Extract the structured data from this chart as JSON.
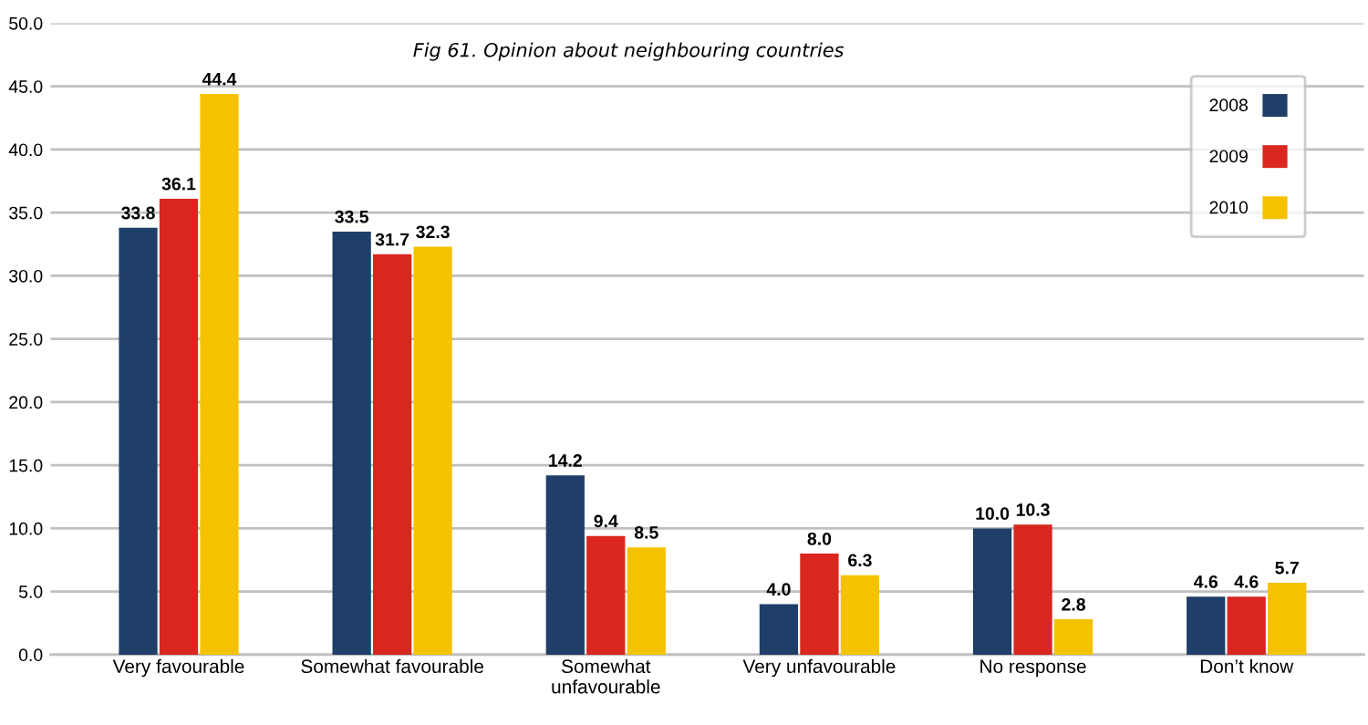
{
  "chart_data": {
    "type": "bar",
    "title": "Fig 61. Opinion about neighbouring countries",
    "categories": [
      "Very favourable",
      "Somewhat favourable",
      "Somewhat\nunfavourable",
      "Very unfavourable",
      "No response",
      "Don’t know"
    ],
    "series": [
      {
        "name": "2008",
        "color": "#1f3f68",
        "values": [
          33.8,
          33.5,
          14.2,
          4.0,
          10.0,
          4.6
        ],
        "value_labels": [
          "33.8",
          "33.5",
          "14.2",
          "4.0",
          "10.0",
          "4.6"
        ]
      },
      {
        "name": "2009",
        "color": "#d9261f",
        "values": [
          36.1,
          31.7,
          9.4,
          8.0,
          10.3,
          4.6
        ],
        "value_labels": [
          "36.1",
          "31.7",
          "9.4",
          "8.0",
          "10.3",
          "4.6"
        ]
      },
      {
        "name": "2010",
        "color": "#f5c200",
        "values": [
          44.4,
          32.3,
          8.5,
          6.3,
          2.8,
          5.7
        ],
        "value_labels": [
          "44.4",
          "32.3",
          "8.5",
          "6.3",
          "2.8",
          "5.7"
        ]
      }
    ],
    "ylim": [
      0,
      50
    ],
    "yticks": [
      {
        "value": 0,
        "label": "0.0"
      },
      {
        "value": 5,
        "label": "5.0"
      },
      {
        "value": 10,
        "label": "10.0"
      },
      {
        "value": 15,
        "label": "15.0"
      },
      {
        "value": 20,
        "label": "20.0"
      },
      {
        "value": 25,
        "label": "25.0"
      },
      {
        "value": 30,
        "label": "30.0"
      },
      {
        "value": 35,
        "label": "35.0"
      },
      {
        "value": 40,
        "label": "40.0"
      },
      {
        "value": 45,
        "label": "45.0"
      },
      {
        "value": 50,
        "label": "50.0"
      }
    ],
    "grid": "y",
    "legend": "top right"
  }
}
